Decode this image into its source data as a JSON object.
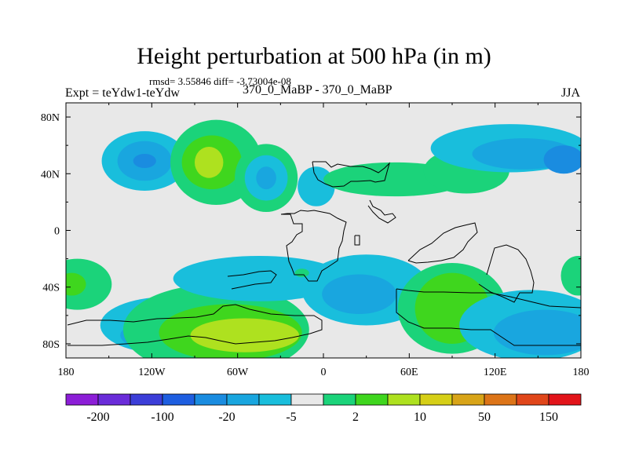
{
  "chart_data": {
    "type": "heatmap",
    "title": "Height perturbation at 500 hPa (in m)",
    "stats_line": "rmsd= 3.55846 diff= -3.73004e-08",
    "left_label": "Expt = teYdw1-teYdw",
    "center_label": "370_0_MaBP - 370_0_MaBP",
    "right_label": "JJA",
    "x_ticks": [
      "180",
      "120W",
      "60W",
      "0",
      "60E",
      "120E",
      "180"
    ],
    "y_ticks": [
      "80N",
      "40N",
      "0",
      "40S",
      "80S"
    ],
    "xlim": [
      -180,
      180
    ],
    "ylim": [
      -90,
      90
    ],
    "colorbar": {
      "labels": [
        "-200",
        "-100",
        "-20",
        "-5",
        "2",
        "10",
        "50",
        "150"
      ],
      "colors": [
        "#8c1ed7",
        "#6a2cd9",
        "#3c3ed8",
        "#1e5ee0",
        "#1a8ce0",
        "#19a6df",
        "#19bedc",
        "#e8e8e8",
        "#1bd37a",
        "#3fd61e",
        "#aee11f",
        "#d6cf17",
        "#d8a418",
        "#dc7418",
        "#e0461a",
        "#e2141a"
      ]
    },
    "anomalies": [
      {
        "lon": -158,
        "lat": 62,
        "rx": 16,
        "ry": 15,
        "level": 7
      },
      {
        "lon": -125,
        "lat": 49,
        "rx": 30,
        "ry": 21,
        "level": 6
      },
      {
        "lon": -125,
        "lat": 49,
        "rx": 19,
        "ry": 14,
        "level": 5
      },
      {
        "lon": -125,
        "lat": 49,
        "rx": 8,
        "ry": 5,
        "level": 4
      },
      {
        "lon": -75,
        "lat": 48,
        "rx": 32,
        "ry": 30,
        "level": 8
      },
      {
        "lon": -78,
        "lat": 48,
        "rx": 21,
        "ry": 19,
        "level": 9
      },
      {
        "lon": -80,
        "lat": 48,
        "rx": 10,
        "ry": 11,
        "level": 10
      },
      {
        "lon": -40,
        "lat": 37,
        "rx": 22,
        "ry": 24,
        "level": 8
      },
      {
        "lon": -40,
        "lat": 37,
        "rx": 15,
        "ry": 16,
        "level": 6
      },
      {
        "lon": -40,
        "lat": 37,
        "rx": 7,
        "ry": 8,
        "level": 5
      },
      {
        "lon": -5,
        "lat": 31,
        "rx": 13,
        "ry": 14,
        "level": 6
      },
      {
        "lon": 50,
        "lat": 36,
        "rx": 50,
        "ry": 12,
        "level": 8
      },
      {
        "lon": 100,
        "lat": 42,
        "rx": 30,
        "ry": 16,
        "level": 8
      },
      {
        "lon": 130,
        "lat": 58,
        "rx": 55,
        "ry": 17,
        "level": 6
      },
      {
        "lon": 140,
        "lat": 54,
        "rx": 36,
        "ry": 11,
        "level": 5
      },
      {
        "lon": 168,
        "lat": 50,
        "rx": 14,
        "ry": 10,
        "level": 4
      },
      {
        "lon": -172,
        "lat": -38,
        "rx": 24,
        "ry": 18,
        "level": 8
      },
      {
        "lon": -176,
        "lat": -38,
        "rx": 10,
        "ry": 8,
        "level": 9
      },
      {
        "lon": -110,
        "lat": -67,
        "rx": 46,
        "ry": 20,
        "level": 6
      },
      {
        "lon": -112,
        "lat": -74,
        "rx": 30,
        "ry": 11,
        "level": 5
      },
      {
        "lon": -75,
        "lat": -70,
        "rx": 65,
        "ry": 32,
        "level": 8
      },
      {
        "lon": -65,
        "lat": -72,
        "rx": 50,
        "ry": 20,
        "level": 9
      },
      {
        "lon": -55,
        "lat": -74,
        "rx": 38,
        "ry": 12,
        "level": 10
      },
      {
        "lon": -45,
        "lat": -34,
        "rx": 60,
        "ry": 16,
        "level": 6
      },
      {
        "lon": 30,
        "lat": -42,
        "rx": 45,
        "ry": 25,
        "level": 6
      },
      {
        "lon": 25,
        "lat": -45,
        "rx": 26,
        "ry": 14,
        "level": 5
      },
      {
        "lon": 90,
        "lat": -55,
        "rx": 38,
        "ry": 32,
        "level": 8
      },
      {
        "lon": 90,
        "lat": -55,
        "rx": 26,
        "ry": 25,
        "level": 9
      },
      {
        "lon": 145,
        "lat": -67,
        "rx": 50,
        "ry": 25,
        "level": 6
      },
      {
        "lon": 155,
        "lat": -72,
        "rx": 36,
        "ry": 16,
        "level": 5
      },
      {
        "lon": 178,
        "lat": -32,
        "rx": 12,
        "ry": 14,
        "level": 8
      },
      {
        "lon": -15,
        "lat": -30,
        "rx": 5,
        "ry": 3,
        "level": 8
      }
    ]
  }
}
